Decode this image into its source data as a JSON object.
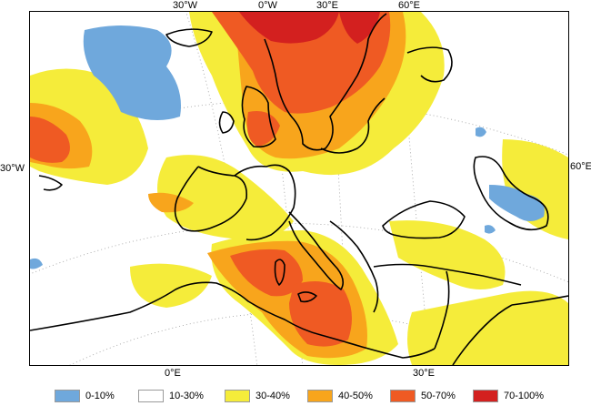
{
  "top_ticks": [
    "30°W",
    "0°W",
    "30°E",
    "60°E"
  ],
  "bottom_ticks": [
    "0°E",
    "30°E"
  ],
  "left_tick": "30°W",
  "right_tick": "60°E",
  "legend": [
    {
      "label": "0-10%",
      "color": "#6fa8dc"
    },
    {
      "label": "10-30%",
      "color": "#ffffff"
    },
    {
      "label": "30-40%",
      "color": "#f5ec3a"
    },
    {
      "label": "40-50%",
      "color": "#f8a51c"
    },
    {
      "label": "50-70%",
      "color": "#ef5a23"
    },
    {
      "label": "70-100%",
      "color": "#d3201f"
    }
  ]
}
